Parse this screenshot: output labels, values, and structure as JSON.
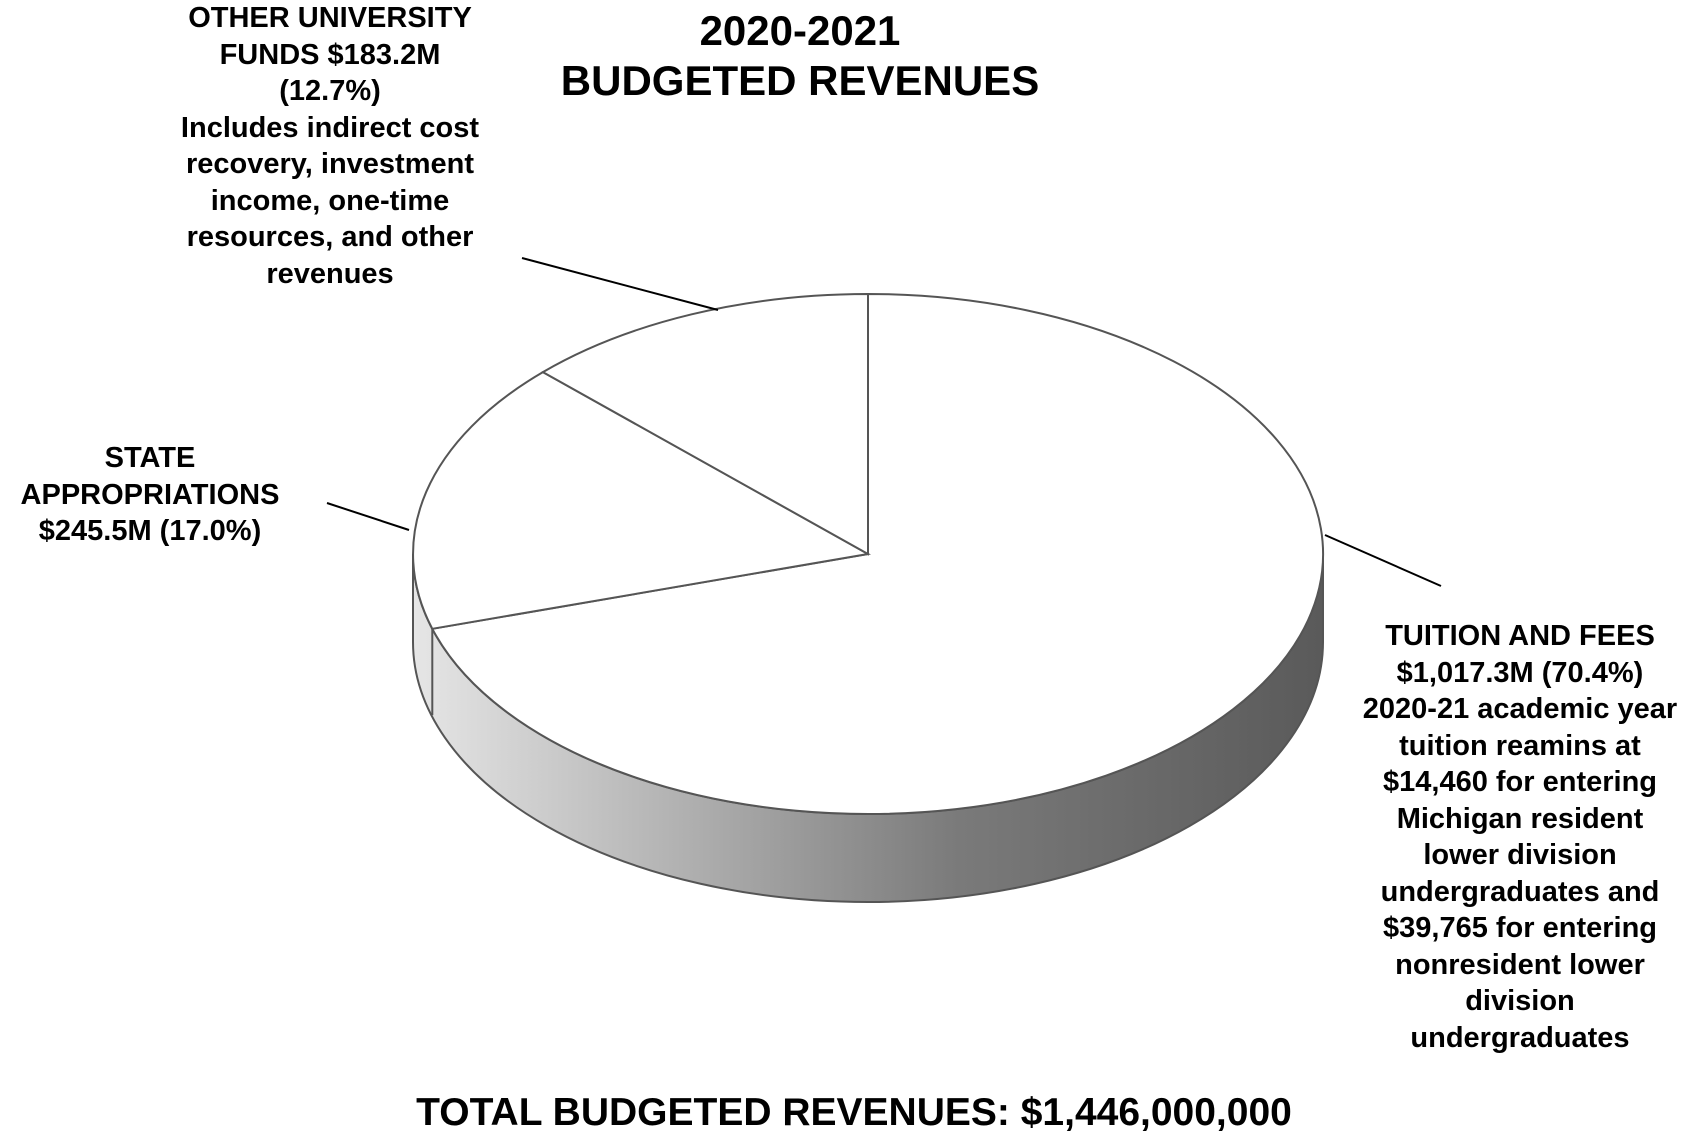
{
  "chart_data": {
    "type": "pie",
    "title": "2020-2021",
    "subtitle": "BUDGETED REVENUES",
    "slices": [
      {
        "name": "TUITION AND FEES",
        "value": 1017.3,
        "percent": 70.4,
        "label_lines": [
          "TUITION AND FEES",
          "$1,017.3M (70.4%)",
          "2020-21 academic year",
          "tuition reamins at",
          "$14,460 for entering",
          "Michigan resident",
          "lower division",
          "undergraduates and",
          "$39,765 for entering",
          "nonresident lower",
          "division",
          "undergraduates"
        ]
      },
      {
        "name": "STATE APPROPRIATIONS",
        "value": 245.5,
        "percent": 17.0,
        "label_lines": [
          "STATE",
          "APPROPRIATIONS",
          "$245.5M (17.0%)"
        ]
      },
      {
        "name": "OTHER UNIVERSITY FUNDS",
        "value": 183.2,
        "percent": 12.7,
        "label_lines": [
          "OTHER UNIVERSITY",
          "FUNDS $183.2M",
          "(12.7%)",
          "Includes indirect cost",
          "recovery, investment",
          "income, one-time",
          "resources, and other",
          "revenues"
        ]
      }
    ],
    "total_label": "TOTAL BUDGETED REVENUES: $1,446,000,000",
    "style": "3d",
    "colors": {
      "top_fill": "#ffffff",
      "edge_stroke": "#555555",
      "side_light": "#e6e6e6",
      "side_dark": "#5a5a5a"
    }
  }
}
